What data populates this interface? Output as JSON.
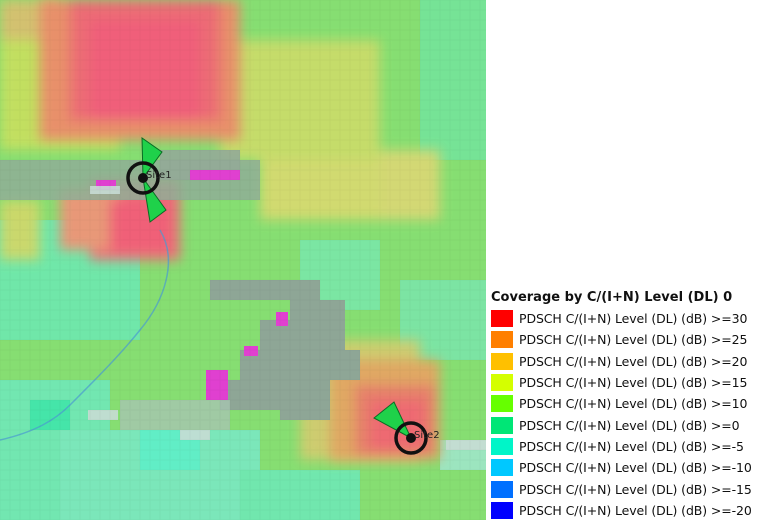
{
  "legend": {
    "title": "Coverage by C/(I+N) Level (DL) 0",
    "items": [
      {
        "label": "PDSCH C/(I+N) Level (DL) (dB) >=30",
        "color": "#ff0000"
      },
      {
        "label": "PDSCH C/(I+N) Level (DL) (dB) >=25",
        "color": "#ff7f00"
      },
      {
        "label": "PDSCH C/(I+N) Level (DL) (dB) >=20",
        "color": "#ffc000"
      },
      {
        "label": "PDSCH C/(I+N) Level (DL) (dB) >=15",
        "color": "#d4ff00"
      },
      {
        "label": "PDSCH C/(I+N) Level (DL) (dB) >=10",
        "color": "#66ff00"
      },
      {
        "label": "PDSCH C/(I+N) Level (DL) (dB) >=0",
        "color": "#00e676"
      },
      {
        "label": "PDSCH C/(I+N) Level (DL) (dB) >=-5",
        "color": "#00f5c8"
      },
      {
        "label": "PDSCH C/(I+N) Level (DL) (dB) >=-10",
        "color": "#00c8ff"
      },
      {
        "label": "PDSCH C/(I+N) Level (DL) (dB) >=-15",
        "color": "#0070ff"
      },
      {
        "label": "PDSCH C/(I+N) Level (DL) (dB) >=-20",
        "color": "#0000ff"
      }
    ]
  },
  "sites": [
    {
      "name": "Site1"
    },
    {
      "name": "Site2"
    }
  ],
  "colors": {
    "base_green": "#88e070",
    "grey_area": "#8fa896",
    "magenta": "#e040d0",
    "sector_fill": "#1fd14a"
  }
}
